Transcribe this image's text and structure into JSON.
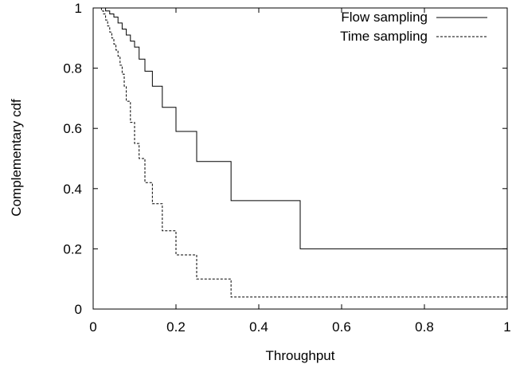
{
  "chart_data": {
    "type": "line",
    "title": "",
    "xlabel": "Throughput",
    "ylabel": "Complementary cdf",
    "xlim": [
      0,
      1
    ],
    "ylim": [
      0,
      1
    ],
    "xticks": [
      0,
      0.2,
      0.4,
      0.6,
      0.8,
      1
    ],
    "xtick_labels": [
      "0",
      "0.2",
      "0.4",
      "0.6",
      "0.8",
      "1"
    ],
    "yticks": [
      0,
      0.2,
      0.4,
      0.6,
      0.8,
      1
    ],
    "ytick_labels": [
      "0",
      "0.2",
      "0.4",
      "0.6",
      "0.8",
      "1"
    ],
    "grid": false,
    "legend_position": "top-right",
    "series": [
      {
        "name": "Flow sampling",
        "style": "solid",
        "color": "#000000",
        "x": [
          0,
          0.02,
          0.03,
          0.04,
          0.05,
          0.06,
          0.07,
          0.08,
          0.09,
          0.1,
          0.111,
          0.125,
          0.143,
          0.167,
          0.2,
          0.25,
          0.333,
          0.5,
          1
        ],
        "y": [
          1,
          1,
          0.99,
          0.98,
          0.97,
          0.95,
          0.93,
          0.91,
          0.89,
          0.87,
          0.83,
          0.79,
          0.74,
          0.67,
          0.59,
          0.49,
          0.36,
          0.2,
          0.2
        ]
      },
      {
        "name": "Time sampling",
        "style": "dashed",
        "color": "#000000",
        "x": [
          0,
          0.02,
          0.025,
          0.03,
          0.035,
          0.04,
          0.045,
          0.05,
          0.055,
          0.06,
          0.065,
          0.07,
          0.075,
          0.08,
          0.09,
          0.1,
          0.111,
          0.125,
          0.143,
          0.167,
          0.2,
          0.25,
          0.333,
          0.5,
          1
        ],
        "y": [
          1,
          0.99,
          0.98,
          0.96,
          0.94,
          0.92,
          0.9,
          0.88,
          0.86,
          0.84,
          0.81,
          0.78,
          0.74,
          0.69,
          0.62,
          0.55,
          0.5,
          0.42,
          0.35,
          0.26,
          0.18,
          0.1,
          0.04,
          0.04,
          0.04
        ]
      }
    ]
  }
}
